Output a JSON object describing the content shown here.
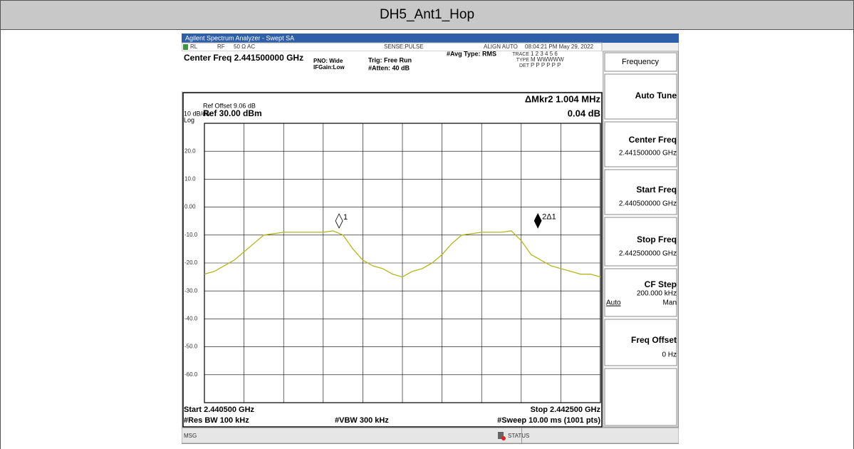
{
  "header": {
    "title": "DH5_Ant1_Hop"
  },
  "analyzer": {
    "window_title": "Agilent Spectrum Analyzer - Swept SA",
    "status": {
      "rl": "RL",
      "rf": "RF",
      "impedance": "50 Ω",
      "coupling": "AC",
      "sense": "SENSE:PULSE",
      "align": "ALIGN AUTO",
      "datetime": "08:04:21 PM May 29, 2022"
    },
    "settings": {
      "center_freq": "Center Freq 2.441500000 GHz",
      "pno": "PNO: Wide",
      "ifgain": "IFGain:Low",
      "trig": "Trig: Free Run",
      "atten": "#Atten: 40 dB",
      "avg_type": "#Avg Type: RMS",
      "trace_label": "TRACE",
      "trace_values": "1 2 3 4 5 6",
      "type_label": "TYPE",
      "type_values": "M WWWWW",
      "det_label": "DET",
      "det_values": "P P P P P P"
    },
    "display": {
      "ref_offset": "Ref Offset 9.06 dB",
      "scale": "10 dB/div",
      "log": "Log",
      "ref_level": "Ref 30.00 dBm",
      "marker_readout": "ΔMkr2 1.004 MHz",
      "marker_delta": "0.04 dB"
    },
    "footer": {
      "start": "Start 2.440500 GHz",
      "stop": "Stop 2.442500 GHz",
      "rbw": "#Res BW 100 kHz",
      "vbw": "#VBW 300 kHz",
      "sweep": "#Sweep 10.00 ms (1001 pts)"
    },
    "statusbar": {
      "msg": "MSG",
      "status": "STATUS"
    },
    "softkeys": {
      "menu": "Frequency",
      "auto_tune": "Auto Tune",
      "center_title": "Center Freq",
      "center_value": "2.441500000 GHz",
      "start_title": "Start Freq",
      "start_value": "2.440500000 GHz",
      "stop_title": "Stop Freq",
      "stop_value": "2.442500000 GHz",
      "cfstep_title": "CF Step",
      "cfstep_value": "200.000 kHz",
      "cfstep_auto": "Auto",
      "cfstep_man": "Man",
      "offset_title": "Freq Offset",
      "offset_value": "0 Hz"
    }
  },
  "chart_data": {
    "type": "line",
    "color": "#b8b41c",
    "xlim": [
      2.4405,
      2.4425
    ],
    "ylim": [
      -70,
      30
    ],
    "yticks": [
      {
        "value": 20,
        "label": "20.0"
      },
      {
        "value": 10,
        "label": "10.0"
      },
      {
        "value": 0,
        "label": "0.00"
      },
      {
        "value": -10,
        "label": "-10.0"
      },
      {
        "value": -20,
        "label": "-20.0"
      },
      {
        "value": -30,
        "label": "-30.0"
      },
      {
        "value": -40,
        "label": "-40.0"
      },
      {
        "value": -50,
        "label": "-50.0"
      },
      {
        "value": -60,
        "label": "-60.0"
      }
    ],
    "grid": true,
    "x": [
      2.4405,
      2.44055,
      2.4406,
      2.44065,
      2.4407,
      2.44075,
      2.4408,
      2.44085,
      2.4409,
      2.44095,
      2.441,
      2.44105,
      2.4411,
      2.44115,
      2.4412,
      2.44125,
      2.4413,
      2.44135,
      2.4414,
      2.44145,
      2.4415,
      2.44155,
      2.4416,
      2.44165,
      2.4417,
      2.44175,
      2.4418,
      2.44185,
      2.4419,
      2.44195,
      2.442,
      2.44205,
      2.4421,
      2.44215,
      2.4422,
      2.44225,
      2.4423,
      2.44235,
      2.4424,
      2.44245,
      2.4425
    ],
    "values": [
      -24,
      -23,
      -21,
      -19,
      -16,
      -13,
      -10,
      -9.5,
      -9,
      -9,
      -9,
      -9,
      -9,
      -8.5,
      -10,
      -15,
      -19,
      -21,
      -22,
      -24,
      -25,
      -23,
      -22,
      -20,
      -17,
      -13,
      -10,
      -9.5,
      -9,
      -9,
      -9,
      -8.5,
      -12,
      -17,
      -19,
      -21,
      -22,
      -23,
      -24,
      -24,
      -25
    ],
    "markers": [
      {
        "label": "1",
        "x": 2.44118,
        "y": -8
      },
      {
        "label": "2Δ1",
        "x": 2.442184,
        "y": -7.96
      }
    ]
  }
}
